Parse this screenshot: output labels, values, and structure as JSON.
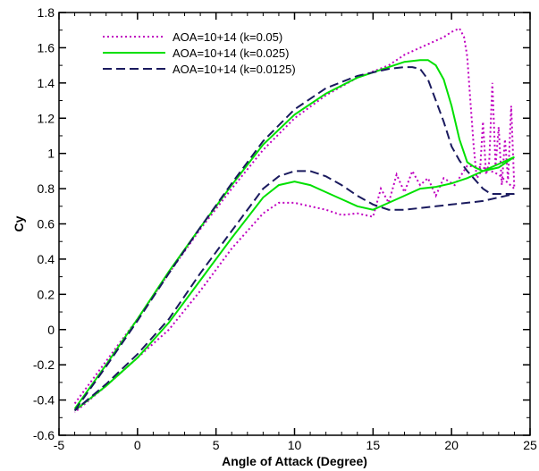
{
  "chart_data": {
    "type": "line",
    "title": "",
    "xlabel": "Angle of Attack (Degree)",
    "ylabel": "Cy",
    "xlim": [
      -5,
      25
    ],
    "ylim": [
      -0.6,
      1.8
    ],
    "xticks": [
      -5,
      0,
      5,
      10,
      15,
      20,
      25
    ],
    "yticks": [
      -0.6,
      -0.4,
      -0.2,
      0,
      0.2,
      0.4,
      0.6,
      0.8,
      1,
      1.2,
      1.4,
      1.6,
      1.8
    ],
    "grid": false,
    "legend_position": "top-left",
    "series": [
      {
        "name": "AOA=10+14 (k=0.05)",
        "color": "#c000c0",
        "dash": "dotted",
        "upstroke": [
          [
            -4,
            -0.42
          ],
          [
            -2,
            -0.18
          ],
          [
            0,
            0.06
          ],
          [
            2,
            0.32
          ],
          [
            4,
            0.57
          ],
          [
            6,
            0.8
          ],
          [
            8,
            1.02
          ],
          [
            10,
            1.2
          ],
          [
            12,
            1.33
          ],
          [
            14,
            1.43
          ],
          [
            16,
            1.5
          ],
          [
            17,
            1.56
          ],
          [
            18,
            1.6
          ],
          [
            19,
            1.64
          ],
          [
            19.5,
            1.66
          ],
          [
            20,
            1.69
          ],
          [
            20.5,
            1.71
          ],
          [
            20.8,
            1.66
          ],
          [
            21,
            1.55
          ],
          [
            21.2,
            1.3
          ],
          [
            21.4,
            1.05
          ],
          [
            21.6,
            0.86
          ],
          [
            21.8,
            0.88
          ],
          [
            22,
            1.18
          ],
          [
            22.2,
            0.88
          ],
          [
            22.4,
            0.95
          ],
          [
            22.6,
            1.4
          ],
          [
            22.8,
            0.93
          ],
          [
            23.0,
            1.15
          ],
          [
            23.2,
            0.82
          ],
          [
            23.4,
            1.08
          ],
          [
            23.6,
            0.85
          ],
          [
            23.8,
            1.27
          ],
          [
            24,
            0.8
          ]
        ],
        "downstroke": [
          [
            24,
            0.8
          ],
          [
            23,
            0.88
          ],
          [
            22,
            0.92
          ],
          [
            21,
            0.93
          ],
          [
            20.2,
            0.82
          ],
          [
            19.5,
            0.86
          ],
          [
            19,
            0.76
          ],
          [
            18.5,
            0.86
          ],
          [
            18,
            0.82
          ],
          [
            17.5,
            0.9
          ],
          [
            17,
            0.78
          ],
          [
            16.5,
            0.88
          ],
          [
            16,
            0.72
          ],
          [
            15.5,
            0.8
          ],
          [
            15,
            0.64
          ],
          [
            14,
            0.66
          ],
          [
            13,
            0.65
          ],
          [
            12,
            0.68
          ],
          [
            11,
            0.7
          ],
          [
            10,
            0.72
          ],
          [
            9,
            0.72
          ],
          [
            8,
            0.66
          ],
          [
            6,
            0.46
          ],
          [
            4,
            0.22
          ],
          [
            2,
            0.0
          ],
          [
            0,
            -0.16
          ],
          [
            -2,
            -0.32
          ],
          [
            -4,
            -0.47
          ]
        ]
      },
      {
        "name": "AOA=10+14 (k=0.025)",
        "color": "#00e000",
        "dash": "solid",
        "upstroke": [
          [
            -4,
            -0.45
          ],
          [
            -2,
            -0.2
          ],
          [
            0,
            0.06
          ],
          [
            2,
            0.33
          ],
          [
            4,
            0.58
          ],
          [
            6,
            0.82
          ],
          [
            8,
            1.05
          ],
          [
            10,
            1.22
          ],
          [
            12,
            1.34
          ],
          [
            14,
            1.43
          ],
          [
            16,
            1.49
          ],
          [
            17,
            1.52
          ],
          [
            18,
            1.53
          ],
          [
            18.5,
            1.53
          ],
          [
            19,
            1.5
          ],
          [
            19.5,
            1.42
          ],
          [
            20,
            1.27
          ],
          [
            20.5,
            1.08
          ],
          [
            21,
            0.95
          ],
          [
            21.5,
            0.92
          ],
          [
            22,
            0.9
          ],
          [
            22.5,
            0.92
          ],
          [
            23,
            0.94
          ],
          [
            23.5,
            0.96
          ],
          [
            24,
            0.98
          ]
        ],
        "downstroke": [
          [
            24,
            0.98
          ],
          [
            23,
            0.92
          ],
          [
            22,
            0.9
          ],
          [
            21,
            0.86
          ],
          [
            20,
            0.83
          ],
          [
            19,
            0.81
          ],
          [
            18,
            0.8
          ],
          [
            17,
            0.76
          ],
          [
            16,
            0.72
          ],
          [
            15,
            0.68
          ],
          [
            14,
            0.7
          ],
          [
            13,
            0.74
          ],
          [
            12,
            0.78
          ],
          [
            11,
            0.82
          ],
          [
            10,
            0.84
          ],
          [
            9,
            0.82
          ],
          [
            8,
            0.75
          ],
          [
            6,
            0.52
          ],
          [
            4,
            0.28
          ],
          [
            2,
            0.04
          ],
          [
            0,
            -0.16
          ],
          [
            -2,
            -0.32
          ],
          [
            -4,
            -0.46
          ]
        ]
      },
      {
        "name": "AOA=10+14 (k=0.0125)",
        "color": "#1a1a5e",
        "dash": "dashed",
        "upstroke": [
          [
            -4,
            -0.46
          ],
          [
            -2,
            -0.21
          ],
          [
            0,
            0.05
          ],
          [
            2,
            0.32
          ],
          [
            4,
            0.58
          ],
          [
            6,
            0.83
          ],
          [
            8,
            1.07
          ],
          [
            10,
            1.25
          ],
          [
            12,
            1.37
          ],
          [
            14,
            1.44
          ],
          [
            16,
            1.48
          ],
          [
            17,
            1.49
          ],
          [
            17.5,
            1.49
          ],
          [
            18,
            1.48
          ],
          [
            18.5,
            1.42
          ],
          [
            19,
            1.3
          ],
          [
            19.5,
            1.18
          ],
          [
            20,
            1.04
          ],
          [
            20.5,
            0.96
          ],
          [
            21,
            0.9
          ],
          [
            21.5,
            0.85
          ],
          [
            22,
            0.8
          ],
          [
            22.5,
            0.77
          ],
          [
            23,
            0.77
          ],
          [
            23.5,
            0.77
          ],
          [
            24,
            0.77
          ]
        ],
        "downstroke": [
          [
            24,
            0.77
          ],
          [
            23,
            0.75
          ],
          [
            22,
            0.73
          ],
          [
            21,
            0.72
          ],
          [
            20,
            0.71
          ],
          [
            19,
            0.7
          ],
          [
            18,
            0.69
          ],
          [
            17,
            0.68
          ],
          [
            16,
            0.68
          ],
          [
            15,
            0.71
          ],
          [
            14,
            0.76
          ],
          [
            13,
            0.82
          ],
          [
            12,
            0.87
          ],
          [
            11,
            0.9
          ],
          [
            10,
            0.9
          ],
          [
            9,
            0.87
          ],
          [
            8,
            0.8
          ],
          [
            6,
            0.56
          ],
          [
            4,
            0.32
          ],
          [
            2,
            0.06
          ],
          [
            0,
            -0.14
          ],
          [
            -2,
            -0.31
          ],
          [
            -4,
            -0.46
          ]
        ]
      }
    ]
  }
}
